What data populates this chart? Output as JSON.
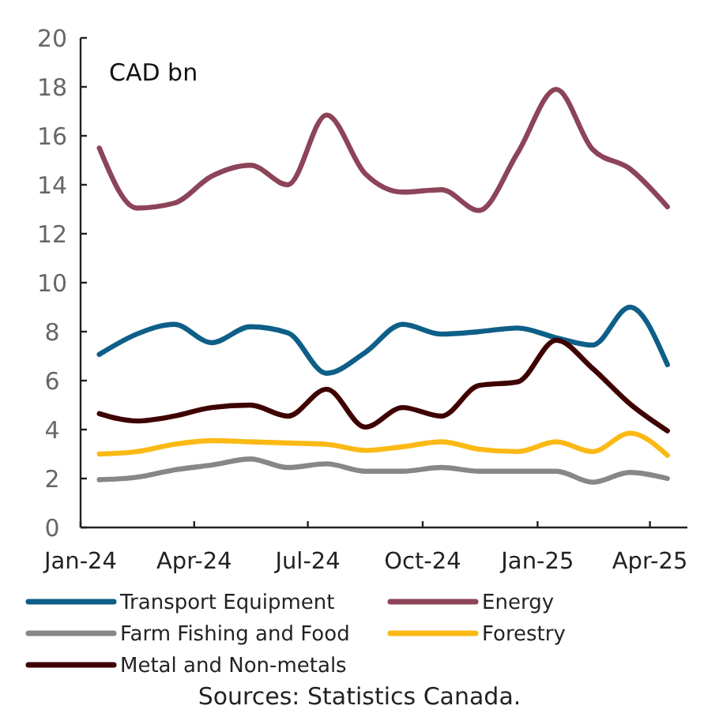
{
  "chart_data": {
    "type": "line",
    "x": [
      "2024-01-16",
      "2024-02-15",
      "2024-03-16",
      "2024-04-15",
      "2024-05-16",
      "2024-06-15",
      "2024-07-16",
      "2024-08-16",
      "2024-09-15",
      "2024-10-16",
      "2024-11-15",
      "2024-12-16",
      "2025-01-16",
      "2025-02-14",
      "2025-03-16",
      "2025-04-15"
    ],
    "xlim": [
      "2024-01-01",
      "2025-05-01"
    ],
    "xticks": [
      {
        "value": "2024-01-01",
        "label": "Jan-24"
      },
      {
        "value": "2024-04-01",
        "label": "Apr-24"
      },
      {
        "value": "2024-07-01",
        "label": "Jul-24"
      },
      {
        "value": "2024-10-01",
        "label": "Oct-24"
      },
      {
        "value": "2025-01-01",
        "label": "Jan-25"
      },
      {
        "value": "2025-04-01",
        "label": "Apr-25"
      }
    ],
    "ylim": [
      0,
      20
    ],
    "yticks": [
      0,
      2,
      4,
      6,
      8,
      10,
      12,
      14,
      16,
      18,
      20
    ],
    "series": [
      {
        "name": "Transport Equipment",
        "color": "#0e5f88",
        "values": [
          7.07,
          7.9,
          8.3,
          7.55,
          8.2,
          7.95,
          6.3,
          7.15,
          8.3,
          7.9,
          8.0,
          8.15,
          7.75,
          7.45,
          9.0,
          6.65
        ]
      },
      {
        "name": "Energy",
        "color": "#8c4459",
        "values": [
          15.5,
          13.05,
          13.25,
          14.35,
          14.8,
          14.0,
          16.85,
          14.45,
          13.7,
          13.8,
          12.95,
          15.3,
          17.9,
          15.45,
          14.65,
          13.1
        ]
      },
      {
        "name": "Farm Fishing and Food",
        "color": "#878787",
        "values": [
          1.95,
          2.05,
          2.35,
          2.55,
          2.8,
          2.45,
          2.6,
          2.3,
          2.3,
          2.45,
          2.3,
          2.3,
          2.3,
          1.85,
          2.25,
          2.0
        ]
      },
      {
        "name": "Forestry",
        "color": "#fbb916",
        "values": [
          3.0,
          3.1,
          3.4,
          3.55,
          3.5,
          3.45,
          3.4,
          3.15,
          3.3,
          3.5,
          3.2,
          3.1,
          3.5,
          3.1,
          3.85,
          2.95
        ]
      },
      {
        "name": "Metal and Non-metals",
        "color": "#3e0000",
        "values": [
          4.65,
          4.35,
          4.55,
          4.9,
          5.0,
          4.55,
          5.65,
          4.1,
          4.9,
          4.55,
          5.8,
          5.95,
          7.65,
          6.5,
          5.05,
          3.95
        ]
      }
    ],
    "legend": "bottom",
    "grid": false,
    "line_style": "solid",
    "marker": "none",
    "annotations": [
      "CAD bn",
      "Sources: Statistics Canada."
    ]
  }
}
